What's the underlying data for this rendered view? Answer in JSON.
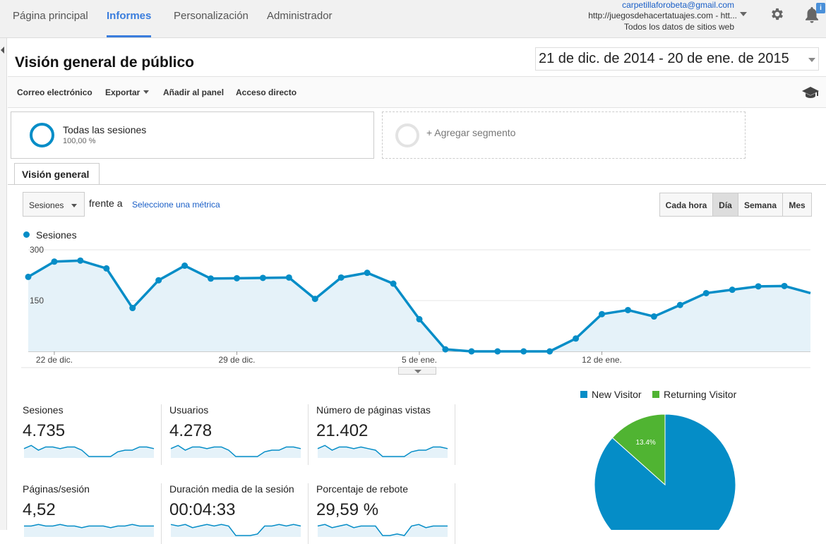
{
  "nav": {
    "tabs": [
      {
        "label": "Página principal"
      },
      {
        "label": "Informes"
      },
      {
        "label": "Personalización"
      },
      {
        "label": "Administrador"
      }
    ],
    "account_email": "carpetillaforobeta@gmail.com",
    "account_site": "http://juegosdehacertatuajes.com - htt...",
    "account_scope": "Todos los datos de sitios web",
    "notification_badge": "i"
  },
  "header": {
    "title": "Visión general de público",
    "date_range": "21 de dic. de 2014 - 20 de ene. de 2015"
  },
  "toolbar": {
    "email": "Correo electrónico",
    "export": "Exportar",
    "add_dashboard": "Añadir al panel",
    "shortcut": "Acceso directo"
  },
  "segments": {
    "active_label": "Todas las sesiones",
    "active_pct": "100,00 %",
    "add_label": "+ Agregar segmento"
  },
  "overview": {
    "tab_label": "Visión general",
    "metric_selected": "Sesiones",
    "versus": "frente a",
    "pick_metric": "Seleccione una métrica",
    "granularity": [
      {
        "label": "Cada hora"
      },
      {
        "label": "Día"
      },
      {
        "label": "Semana"
      },
      {
        "label": "Mes"
      }
    ]
  },
  "chart_data": [
    {
      "type": "area",
      "title": "",
      "series": [
        {
          "name": "Sesiones",
          "values": [
            220,
            265,
            268,
            245,
            128,
            210,
            253,
            215,
            216,
            217,
            218,
            155,
            218,
            232,
            200,
            95,
            6,
            0,
            0,
            0,
            0,
            38,
            110,
            122,
            103,
            137,
            172,
            182,
            192,
            193,
            172
          ]
        }
      ],
      "x_tick_labels": [
        "22 de dic.",
        "29 de dic.",
        "5 de ene.",
        "12 de ene."
      ],
      "x_tick_indices": [
        1,
        8,
        15,
        22
      ],
      "y_tick_labels": [
        "300",
        "150"
      ],
      "y_ticks": [
        300,
        150
      ],
      "ylim": [
        0,
        300
      ],
      "color": "#058dc7",
      "fill": "#e5f2f9"
    },
    {
      "type": "pie",
      "legend": [
        "New Visitor",
        "Returning Visitor"
      ],
      "values": [
        86.6,
        13.4
      ],
      "labels": [
        "",
        "13.4%"
      ],
      "colors": [
        "#058dc7",
        "#50b432"
      ]
    }
  ],
  "scorecards": [
    {
      "label": "Sesiones",
      "value": "4.735",
      "spark": [
        5,
        7,
        4,
        6,
        6,
        5,
        6,
        6,
        4,
        0,
        0,
        0,
        0,
        3,
        4,
        4,
        6,
        6,
        5
      ]
    },
    {
      "label": "Usuarios",
      "value": "4.278",
      "spark": [
        5,
        7,
        4,
        6,
        6,
        5,
        6,
        6,
        4,
        0,
        0,
        0,
        0,
        3,
        4,
        4,
        6,
        6,
        5
      ]
    },
    {
      "label": "Número de páginas vistas",
      "value": "21.402",
      "spark": [
        5,
        7,
        4,
        6,
        6,
        5,
        6,
        5,
        4,
        0,
        0,
        0,
        0,
        3,
        4,
        4,
        6,
        6,
        5
      ]
    },
    {
      "label": "Páginas/sesión",
      "value": "4,52",
      "spark": [
        6,
        6,
        7,
        6,
        6,
        7,
        6,
        6,
        5,
        6,
        6,
        6,
        5,
        6,
        6,
        7,
        6,
        6,
        6
      ]
    },
    {
      "label": "Duración media de la sesión",
      "value": "00:04:33",
      "spark": [
        7,
        6,
        7,
        5,
        6,
        7,
        6,
        7,
        6,
        0,
        0,
        0,
        1,
        6,
        6,
        7,
        6,
        7,
        6
      ]
    },
    {
      "label": "Porcentaje de rebote",
      "value": "29,59 %",
      "spark": [
        6,
        7,
        5,
        6,
        7,
        5,
        6,
        6,
        6,
        0,
        0,
        1,
        0,
        6,
        7,
        5,
        6,
        6,
        6
      ]
    }
  ]
}
